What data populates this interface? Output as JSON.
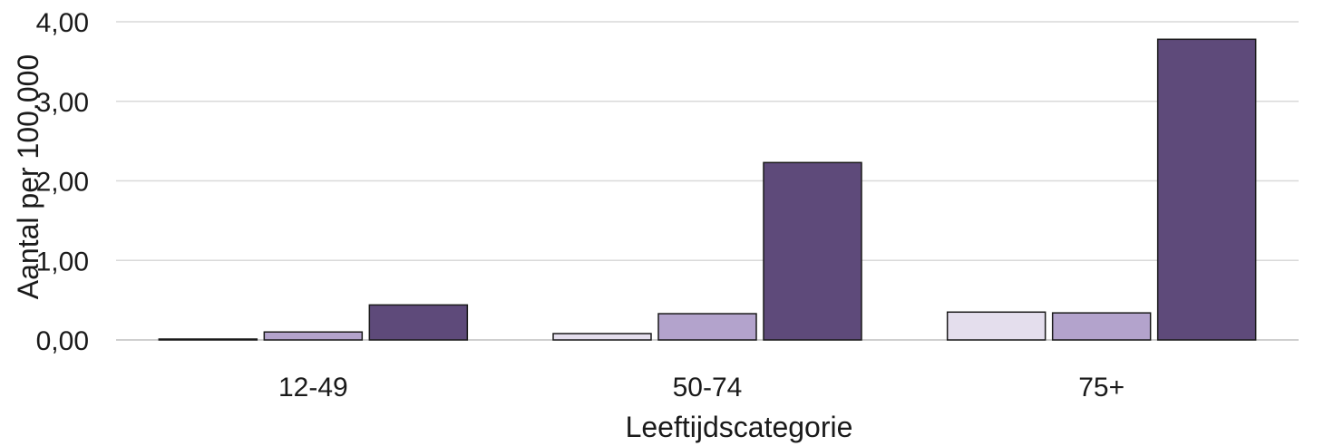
{
  "chart_data": {
    "type": "bar",
    "title": "",
    "xlabel": "Leeftijdscategorie",
    "ylabel": "Aantal per 100.000",
    "categories": [
      "12-49",
      "50-74",
      "75+"
    ],
    "series": [
      {
        "color": "#e4deed",
        "values": [
          0.01,
          0.08,
          0.35
        ]
      },
      {
        "color": "#b3a3cc",
        "values": [
          0.1,
          0.33,
          0.34
        ]
      },
      {
        "color": "#5e4a7a",
        "values": [
          0.44,
          2.23,
          3.78
        ]
      }
    ],
    "ylim": [
      0,
      4
    ],
    "yticks": [
      "0,00",
      "1,00",
      "2,00",
      "3,00",
      "4,00"
    ],
    "grid": true,
    "legend": "none"
  }
}
